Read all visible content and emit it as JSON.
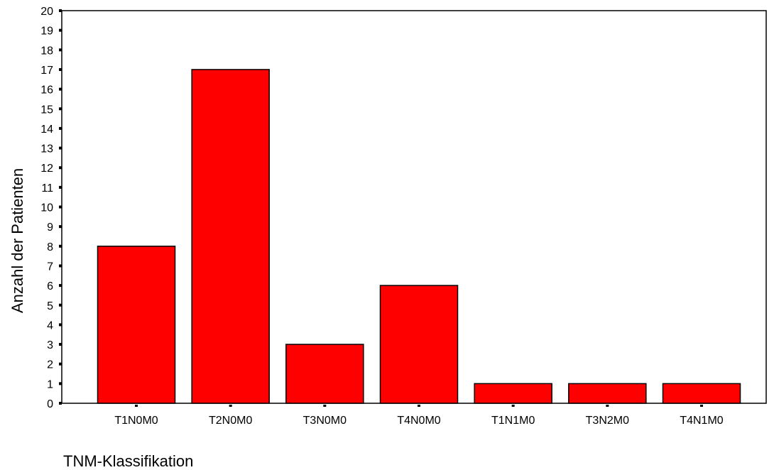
{
  "chart_data": {
    "type": "bar",
    "categories": [
      "T1N0M0",
      "T2N0M0",
      "T3N0M0",
      "T4N0M0",
      "T1N1M0",
      "T3N2M0",
      "T4N1M0"
    ],
    "values": [
      8,
      17,
      3,
      6,
      1,
      1,
      1
    ],
    "title": "",
    "xlabel": "TNM-Klassifikation",
    "ylabel": "Anzahl der Patienten",
    "ylim": [
      0,
      20
    ],
    "yticks": [
      0,
      1,
      2,
      3,
      4,
      5,
      6,
      7,
      8,
      9,
      10,
      11,
      12,
      13,
      14,
      15,
      16,
      17,
      18,
      19,
      20
    ],
    "grid": false,
    "legend": "none",
    "bar_color": "#ff0000",
    "border_color": "#000000"
  }
}
